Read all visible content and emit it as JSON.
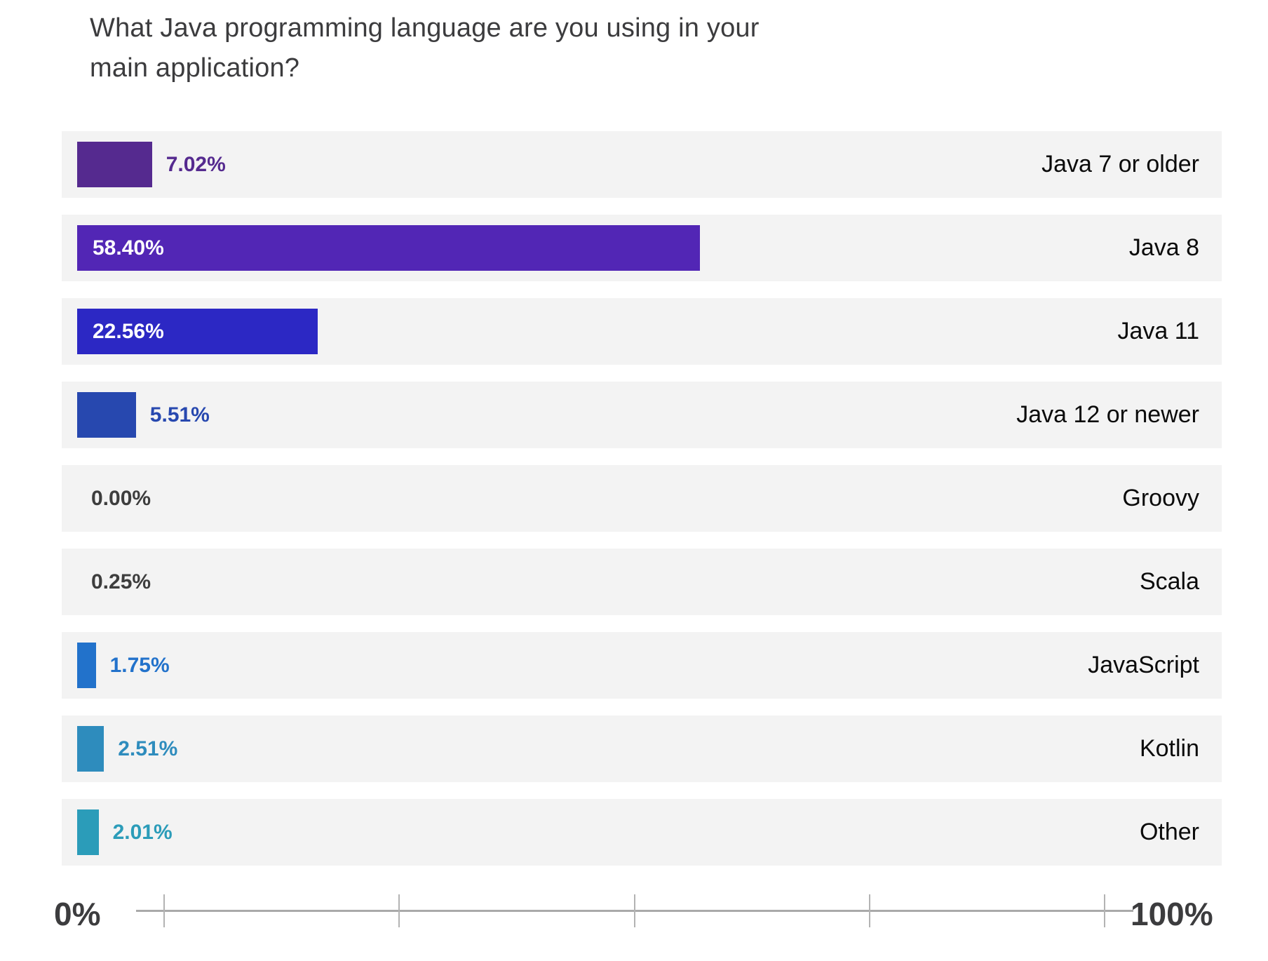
{
  "title_lines": [
    "What Java programming language are you using in your",
    "main application?"
  ],
  "chart_data": {
    "type": "bar",
    "orientation": "horizontal",
    "title": "What Java programming language are you using in your main application?",
    "categories": [
      "Java 7 or older",
      "Java 8",
      "Java 11",
      "Java 12 or newer",
      "Groovy",
      "Scala",
      "JavaScript",
      "Kotlin",
      "Other"
    ],
    "values": [
      7.02,
      58.4,
      22.56,
      5.51,
      0.0,
      0.25,
      1.75,
      2.51,
      2.01
    ],
    "value_labels": [
      "7.02%",
      "58.40%",
      "22.56%",
      "5.51%",
      "0.00%",
      "0.25%",
      "1.75%",
      "2.51%",
      "2.01%"
    ],
    "bar_colors": [
      "#552a8f",
      "#5226b5",
      "#2c28c4",
      "#2748af",
      null,
      null,
      "#2272cb",
      "#2e8cbd",
      "#2b9cb9"
    ],
    "value_label_colors": [
      "#552a8f",
      "#ffffff",
      "#ffffff",
      "#2748af",
      "#3d3d3d",
      "#3d3d3d",
      "#2272cb",
      "#2e8cbd",
      "#2b9cb9"
    ],
    "label_inside": [
      false,
      true,
      true,
      false,
      false,
      false,
      false,
      false,
      false
    ],
    "xlim": [
      0,
      100
    ],
    "axis_ticks": [
      0,
      25,
      50,
      75,
      100
    ],
    "axis_labels": {
      "min": "0%",
      "max": "100%"
    },
    "grid": false,
    "legend": false,
    "row_background": "#f3f3f3"
  },
  "colors": {
    "title_text": "#3c3c3e",
    "category_text": "#0b0b0b",
    "neutral_value_text": "#3d3d3d",
    "axis_line": "#a9a9a9",
    "axis_tick": "#b3b3b3",
    "row_background": "#f3f3f3"
  }
}
